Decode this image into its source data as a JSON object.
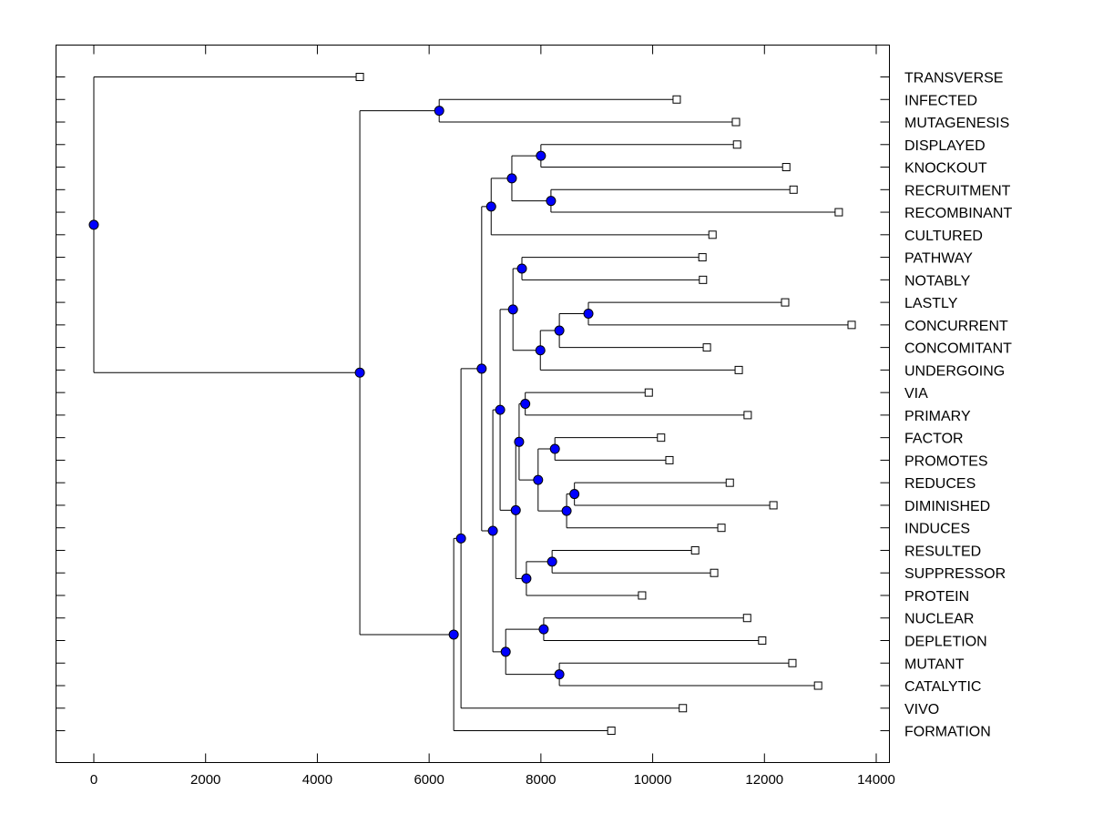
{
  "chart_data": {
    "type": "dendrogram",
    "title": "",
    "xlabel": "",
    "ylabel": "",
    "xlim": [
      -700,
      14250
    ],
    "xticks": [
      0,
      2000,
      4000,
      6000,
      8000,
      10000,
      12000,
      14000
    ],
    "xtick_labels": [
      "0",
      "2000",
      "4000",
      "6000",
      "8000",
      "10000",
      "12000",
      "14000"
    ],
    "node_color": "#0000ff",
    "leaf_marker": "open-square",
    "tree": {
      "height": 0,
      "children": [
        {
          "label": "TRANSVERSE",
          "value": 4760
        },
        {
          "height": 4760,
          "children": [
            {
              "height": 6180,
              "children": [
                {
                  "label": "INFECTED",
                  "value": 10430
                },
                {
                  "label": "MUTAGENESIS",
                  "value": 11490
                }
              ]
            },
            {
              "height": 6440,
              "children": [
                {
                  "height": 6570,
                  "children": [
                    {
                      "height": 6940,
                      "children": [
                        {
                          "height": 7110,
                          "children": [
                            {
                              "height": 7480,
                              "children": [
                                {
                                  "height": 8000,
                                  "children": [
                                    {
                                      "label": "DISPLAYED",
                                      "value": 11510
                                    },
                                    {
                                      "label": "KNOCKOUT",
                                      "value": 12390
                                    }
                                  ]
                                },
                                {
                                  "height": 8180,
                                  "children": [
                                    {
                                      "label": "RECRUITMENT",
                                      "value": 12520
                                    },
                                    {
                                      "label": "RECOMBINANT",
                                      "value": 13330
                                    }
                                  ]
                                }
                              ]
                            },
                            {
                              "label": "CULTURED",
                              "value": 11070
                            }
                          ]
                        },
                        {
                          "height": 7140,
                          "children": [
                            {
                              "height": 7270,
                              "children": [
                                {
                                  "height": 7500,
                                  "children": [
                                    {
                                      "height": 7660,
                                      "children": [
                                        {
                                          "label": "PATHWAY",
                                          "value": 10890
                                        },
                                        {
                                          "label": "NOTABLY",
                                          "value": 10900
                                        }
                                      ]
                                    },
                                    {
                                      "height": 7990,
                                      "children": [
                                        {
                                          "height": 8330,
                                          "children": [
                                            {
                                              "height": 8850,
                                              "children": [
                                                {
                                                  "label": "LASTLY",
                                                  "value": 12370
                                                },
                                                {
                                                  "label": "CONCURRENT",
                                                  "value": 13560
                                                }
                                              ]
                                            },
                                            {
                                              "label": "CONCOMITANT",
                                              "value": 10970
                                            }
                                          ]
                                        },
                                        {
                                          "label": "UNDERGOING",
                                          "value": 11540
                                        }
                                      ]
                                    }
                                  ]
                                },
                                {
                                  "height": 7550,
                                  "children": [
                                    {
                                      "height": 7610,
                                      "children": [
                                        {
                                          "height": 7720,
                                          "children": [
                                            {
                                              "label": "VIA",
                                              "value": 9930
                                            },
                                            {
                                              "label": "PRIMARY",
                                              "value": 11700
                                            }
                                          ]
                                        },
                                        {
                                          "height": 7950,
                                          "children": [
                                            {
                                              "height": 8250,
                                              "children": [
                                                {
                                                  "label": "FACTOR",
                                                  "value": 10150
                                                },
                                                {
                                                  "label": "PROMOTES",
                                                  "value": 10300
                                                }
                                              ]
                                            },
                                            {
                                              "height": 8460,
                                              "children": [
                                                {
                                                  "height": 8600,
                                                  "children": [
                                                    {
                                                      "label": "REDUCES",
                                                      "value": 11380
                                                    },
                                                    {
                                                      "label": "DIMINISHED",
                                                      "value": 12160
                                                    }
                                                  ]
                                                },
                                                {
                                                  "label": "INDUCES",
                                                  "value": 11230
                                                }
                                              ]
                                            }
                                          ]
                                        }
                                      ]
                                    },
                                    {
                                      "height": 7740,
                                      "children": [
                                        {
                                          "height": 8200,
                                          "children": [
                                            {
                                              "label": "RESULTED",
                                              "value": 10760
                                            },
                                            {
                                              "label": "SUPPRESSOR",
                                              "value": 11100
                                            }
                                          ]
                                        },
                                        {
                                          "label": "PROTEIN",
                                          "value": 9810
                                        }
                                      ]
                                    }
                                  ]
                                }
                              ]
                            },
                            {
                              "height": 7370,
                              "children": [
                                {
                                  "height": 8050,
                                  "children": [
                                    {
                                      "label": "NUCLEAR",
                                      "value": 11690
                                    },
                                    {
                                      "label": "DEPLETION",
                                      "value": 11960
                                    }
                                  ]
                                },
                                {
                                  "height": 8330,
                                  "children": [
                                    {
                                      "label": "MUTANT",
                                      "value": 12500
                                    },
                                    {
                                      "label": "CATALYTIC",
                                      "value": 12960
                                    }
                                  ]
                                }
                              ]
                            }
                          ]
                        }
                      ]
                    },
                    {
                      "label": "VIVO",
                      "value": 10540
                    }
                  ]
                },
                {
                  "label": "FORMATION",
                  "value": 9260
                }
              ]
            }
          ]
        }
      ]
    }
  }
}
